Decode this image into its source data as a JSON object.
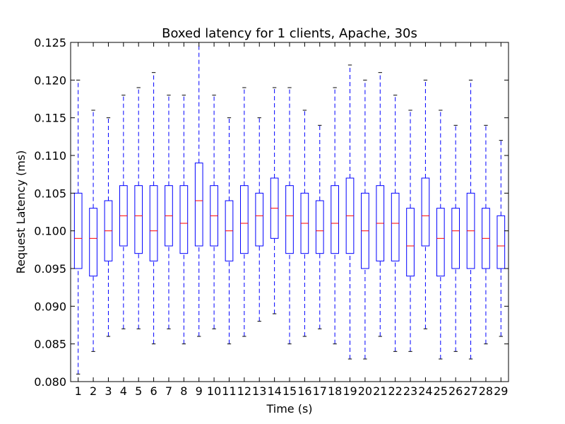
{
  "chart_data": {
    "type": "box",
    "title": "Boxed latency for 1 clients, Apache, 30s",
    "xlabel": "Time (s)",
    "ylabel": "Request Latency (ms)",
    "ylim": [
      0.08,
      0.125
    ],
    "yticks": [
      "0.080",
      "0.085",
      "0.090",
      "0.095",
      "0.100",
      "0.105",
      "0.110",
      "0.115",
      "0.120",
      "0.125"
    ],
    "categories": [
      "1",
      "2",
      "3",
      "4",
      "5",
      "6",
      "7",
      "8",
      "9",
      "10",
      "11",
      "12",
      "13",
      "14",
      "15",
      "16",
      "17",
      "18",
      "19",
      "20",
      "21",
      "22",
      "23",
      "24",
      "25",
      "26",
      "27",
      "28",
      "29"
    ],
    "boxes": [
      {
        "min": 0.081,
        "q1": 0.095,
        "median": 0.099,
        "q3": 0.105,
        "max": 0.12
      },
      {
        "min": 0.084,
        "q1": 0.094,
        "median": 0.099,
        "q3": 0.103,
        "max": 0.116
      },
      {
        "min": 0.086,
        "q1": 0.096,
        "median": 0.1,
        "q3": 0.104,
        "max": 0.115
      },
      {
        "min": 0.087,
        "q1": 0.098,
        "median": 0.102,
        "q3": 0.106,
        "max": 0.118
      },
      {
        "min": 0.087,
        "q1": 0.097,
        "median": 0.102,
        "q3": 0.106,
        "max": 0.119
      },
      {
        "min": 0.085,
        "q1": 0.096,
        "median": 0.1,
        "q3": 0.106,
        "max": 0.121
      },
      {
        "min": 0.087,
        "q1": 0.098,
        "median": 0.102,
        "q3": 0.106,
        "max": 0.118
      },
      {
        "min": 0.085,
        "q1": 0.097,
        "median": 0.101,
        "q3": 0.106,
        "max": 0.118
      },
      {
        "min": 0.086,
        "q1": 0.098,
        "median": 0.104,
        "q3": 0.109,
        "max": 0.125
      },
      {
        "min": 0.087,
        "q1": 0.098,
        "median": 0.102,
        "q3": 0.106,
        "max": 0.118
      },
      {
        "min": 0.085,
        "q1": 0.096,
        "median": 0.1,
        "q3": 0.104,
        "max": 0.115
      },
      {
        "min": 0.086,
        "q1": 0.097,
        "median": 0.101,
        "q3": 0.106,
        "max": 0.119
      },
      {
        "min": 0.088,
        "q1": 0.098,
        "median": 0.102,
        "q3": 0.105,
        "max": 0.115
      },
      {
        "min": 0.089,
        "q1": 0.099,
        "median": 0.103,
        "q3": 0.107,
        "max": 0.119
      },
      {
        "min": 0.085,
        "q1": 0.097,
        "median": 0.102,
        "q3": 0.106,
        "max": 0.119
      },
      {
        "min": 0.086,
        "q1": 0.097,
        "median": 0.101,
        "q3": 0.105,
        "max": 0.116
      },
      {
        "min": 0.087,
        "q1": 0.097,
        "median": 0.1,
        "q3": 0.104,
        "max": 0.114
      },
      {
        "min": 0.085,
        "q1": 0.097,
        "median": 0.101,
        "q3": 0.106,
        "max": 0.119
      },
      {
        "min": 0.083,
        "q1": 0.097,
        "median": 0.102,
        "q3": 0.107,
        "max": 0.122
      },
      {
        "min": 0.083,
        "q1": 0.095,
        "median": 0.1,
        "q3": 0.105,
        "max": 0.12
      },
      {
        "min": 0.086,
        "q1": 0.096,
        "median": 0.101,
        "q3": 0.106,
        "max": 0.121
      },
      {
        "min": 0.084,
        "q1": 0.096,
        "median": 0.101,
        "q3": 0.105,
        "max": 0.118
      },
      {
        "min": 0.084,
        "q1": 0.094,
        "median": 0.098,
        "q3": 0.103,
        "max": 0.116
      },
      {
        "min": 0.087,
        "q1": 0.098,
        "median": 0.102,
        "q3": 0.107,
        "max": 0.12
      },
      {
        "min": 0.083,
        "q1": 0.094,
        "median": 0.099,
        "q3": 0.103,
        "max": 0.116
      },
      {
        "min": 0.084,
        "q1": 0.095,
        "median": 0.1,
        "q3": 0.103,
        "max": 0.114
      },
      {
        "min": 0.083,
        "q1": 0.095,
        "median": 0.1,
        "q3": 0.105,
        "max": 0.12
      },
      {
        "min": 0.085,
        "q1": 0.095,
        "median": 0.099,
        "q3": 0.103,
        "max": 0.114
      },
      {
        "min": 0.086,
        "q1": 0.095,
        "median": 0.098,
        "q3": 0.102,
        "max": 0.112
      }
    ],
    "colors": {
      "box": "#0000ff",
      "median": "#ff0000",
      "whisker": "#0000ff",
      "cap": "#000000",
      "axes": "#000000"
    },
    "grid": false,
    "legend": "none"
  }
}
